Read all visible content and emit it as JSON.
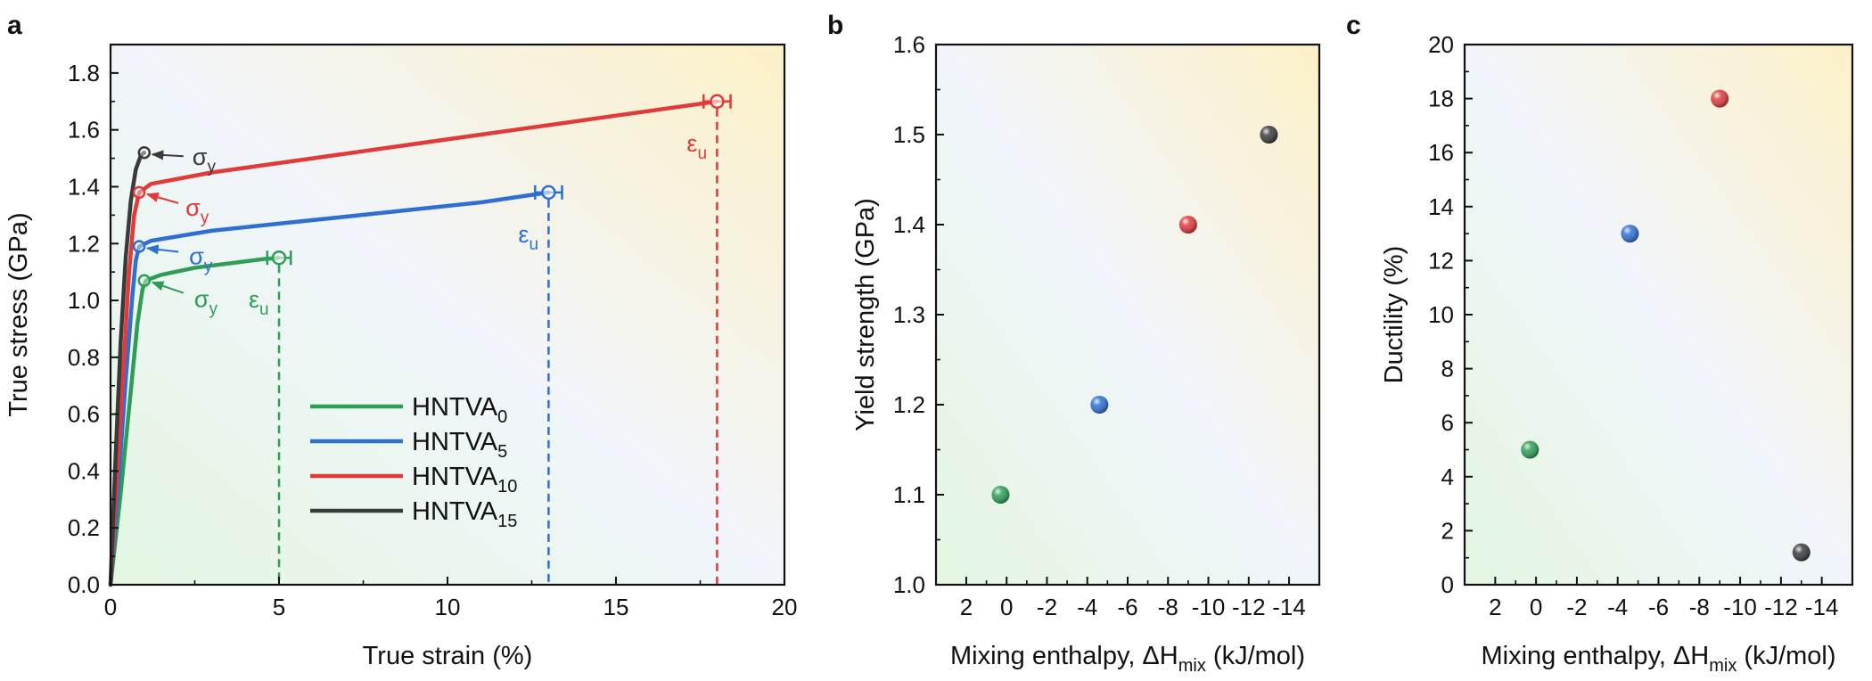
{
  "panels": [
    {
      "id": "a",
      "label": "a",
      "chart_data": {
        "type": "line",
        "xlabel": "True strain (%)",
        "ylabel": "True stress (GPa)",
        "xlim": [
          0,
          20
        ],
        "ylim": [
          0,
          1.9
        ],
        "xticks": [
          0,
          5,
          10,
          15,
          20
        ],
        "yticks": [
          0.0,
          0.2,
          0.4,
          0.6,
          0.8,
          1.0,
          1.2,
          1.4,
          1.6,
          1.8
        ],
        "yticklabels": [
          "0.0",
          "0.2",
          "0.4",
          "0.6",
          "0.8",
          "1.0",
          "1.2",
          "1.4",
          "1.6",
          "1.8"
        ],
        "series": [
          {
            "name": "HNTVA",
            "sub": "0",
            "color": "#2e9e57",
            "x": [
              0,
              0.3,
              0.55,
              0.8,
              0.95,
              1.05,
              1.5,
              2.5,
              3.5,
              4.5,
              5.0
            ],
            "y": [
              0,
              0.32,
              0.62,
              0.92,
              1.04,
              1.07,
              1.09,
              1.115,
              1.13,
              1.145,
              1.15
            ],
            "yield": [
              1.0,
              1.07
            ],
            "fracture": [
              5.0,
              1.15
            ],
            "err": 0.35,
            "sigma_label": "σ",
            "sigma_sub": "y",
            "eps_label": "ε",
            "eps_sub": "u"
          },
          {
            "name": "HNTVA",
            "sub": "5",
            "color": "#2f6fd0",
            "x": [
              0,
              0.25,
              0.45,
              0.65,
              0.75,
              0.85,
              1.2,
              3,
              5,
              7,
              9,
              11,
              13
            ],
            "y": [
              0,
              0.38,
              0.72,
              1.02,
              1.14,
              1.19,
              1.21,
              1.245,
              1.27,
              1.295,
              1.32,
              1.345,
              1.38
            ],
            "yield": [
              0.85,
              1.19
            ],
            "fracture": [
              13.0,
              1.38
            ],
            "err": 0.4,
            "sigma_label": "σ",
            "sigma_sub": "y",
            "eps_label": "ε",
            "eps_sub": "u"
          },
          {
            "name": "HNTVA",
            "sub": "10",
            "color": "#e03a3a",
            "x": [
              0,
              0.2,
              0.4,
              0.55,
              0.7,
              0.85,
              1.2,
              3,
              6,
              9,
              12,
              15,
              18
            ],
            "y": [
              0,
              0.4,
              0.8,
              1.1,
              1.3,
              1.38,
              1.41,
              1.45,
              1.5,
              1.55,
              1.6,
              1.65,
              1.7
            ],
            "yield": [
              0.85,
              1.38
            ],
            "fracture": [
              18.0,
              1.7
            ],
            "err": 0.4,
            "sigma_label": "σ",
            "sigma_sub": "y",
            "eps_label": "ε",
            "eps_sub": "u"
          },
          {
            "name": "HNTVA",
            "sub": "15",
            "color": "#3a3a3a",
            "x": [
              0,
              0.15,
              0.3,
              0.45,
              0.6,
              0.75,
              0.9,
              1.0
            ],
            "y": [
              0,
              0.45,
              0.85,
              1.15,
              1.35,
              1.46,
              1.51,
              1.52
            ],
            "yield": [
              1.0,
              1.52
            ],
            "fracture": null,
            "err": 0,
            "sigma_label": "σ",
            "sigma_sub": "y"
          }
        ]
      }
    },
    {
      "id": "b",
      "label": "b",
      "chart_data": {
        "type": "scatter",
        "xlabel_main": "Mixing enthalpy, ΔH",
        "xlabel_sub": "mix",
        "xlabel_tail": " (kJ/mol)",
        "ylabel": "Yield strength (GPa)",
        "xlim": [
          3.5,
          -15.5
        ],
        "ylim": [
          1.0,
          1.6
        ],
        "xticks": [
          2,
          0,
          -2,
          -4,
          -6,
          -8,
          -10,
          -12,
          -14
        ],
        "xticklabels": [
          "2",
          "0",
          "-2",
          "-4",
          "-6",
          "-8",
          "-10",
          "-12",
          "-14"
        ],
        "yticks": [
          1.0,
          1.1,
          1.2,
          1.3,
          1.4,
          1.5,
          1.6
        ],
        "yticklabels": [
          "1.0",
          "1.1",
          "1.2",
          "1.3",
          "1.4",
          "1.5",
          "1.6"
        ],
        "points": [
          {
            "x": 0.3,
            "y": 1.1,
            "color": "#2e9e57"
          },
          {
            "x": -4.6,
            "y": 1.2,
            "color": "#2f6fd0"
          },
          {
            "x": -9.0,
            "y": 1.4,
            "color": "#e03a3a"
          },
          {
            "x": -13.0,
            "y": 1.5,
            "color": "#3a3a3a"
          }
        ]
      }
    },
    {
      "id": "c",
      "label": "c",
      "chart_data": {
        "type": "scatter",
        "xlabel_main": "Mixing enthalpy, ΔH",
        "xlabel_sub": "mix",
        "xlabel_tail": " (kJ/mol)",
        "ylabel": "Ductility (%)",
        "xlim": [
          3.5,
          -15.5
        ],
        "ylim": [
          0,
          20
        ],
        "xticks": [
          2,
          0,
          -2,
          -4,
          -6,
          -8,
          -10,
          -12,
          -14
        ],
        "xticklabels": [
          "2",
          "0",
          "-2",
          "-4",
          "-6",
          "-8",
          "-10",
          "-12",
          "-14"
        ],
        "yticks": [
          0,
          2,
          4,
          6,
          8,
          10,
          12,
          14,
          16,
          18,
          20
        ],
        "yticklabels": [
          "0",
          "2",
          "4",
          "6",
          "8",
          "10",
          "12",
          "14",
          "16",
          "18",
          "20"
        ],
        "points": [
          {
            "x": 0.3,
            "y": 5,
            "color": "#2e9e57"
          },
          {
            "x": -4.6,
            "y": 13,
            "color": "#2f6fd0"
          },
          {
            "x": -9.0,
            "y": 18,
            "color": "#e03a3a"
          },
          {
            "x": -13.0,
            "y": 1.2,
            "color": "#3a3a3a"
          }
        ]
      }
    }
  ]
}
